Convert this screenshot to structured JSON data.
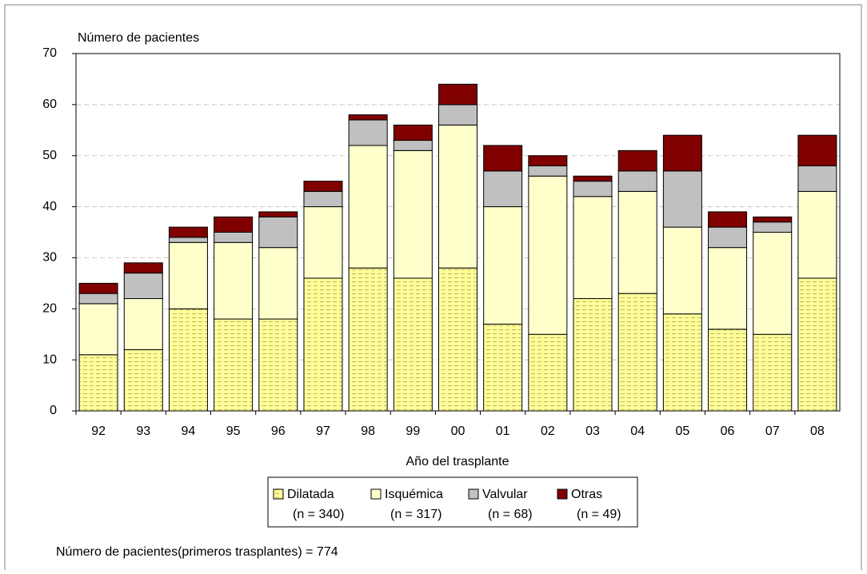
{
  "chart_data": {
    "type": "stacked_bar",
    "y_label": "Número de pacientes",
    "x_label": "Año del trasplante",
    "footnote": "Número de pacientes(primeros trasplantes) = 774",
    "categories": [
      "92",
      "93",
      "94",
      "95",
      "96",
      "97",
      "98",
      "99",
      "00",
      "01",
      "02",
      "03",
      "04",
      "05",
      "06",
      "07",
      "08"
    ],
    "series": [
      {
        "name": "Dilatada",
        "note": "(n = 340)",
        "color": "#ffff99",
        "pattern": "dashed",
        "values": [
          11,
          12,
          20,
          18,
          18,
          26,
          28,
          26,
          28,
          17,
          15,
          22,
          23,
          19,
          16,
          15,
          26
        ]
      },
      {
        "name": "Isquémica",
        "note": "(n = 317)",
        "color": "#ffffcc",
        "values": [
          10,
          10,
          13,
          15,
          14,
          14,
          24,
          25,
          28,
          23,
          31,
          20,
          20,
          17,
          16,
          20,
          17
        ]
      },
      {
        "name": "Valvular",
        "note": "(n = 68)",
        "color": "#c0c0c0",
        "values": [
          2,
          5,
          1,
          2,
          6,
          3,
          5,
          2,
          4,
          7,
          2,
          3,
          4,
          11,
          4,
          2,
          5
        ]
      },
      {
        "name": "Otras",
        "note": "(n = 49)",
        "color": "#800000",
        "values": [
          2,
          2,
          2,
          3,
          1,
          2,
          1,
          3,
          4,
          5,
          2,
          1,
          4,
          7,
          3,
          1,
          6
        ]
      }
    ],
    "ylim": [
      0,
      70
    ],
    "yticks": [
      0,
      10,
      20,
      30,
      40,
      50,
      60,
      70
    ],
    "grid": true
  }
}
